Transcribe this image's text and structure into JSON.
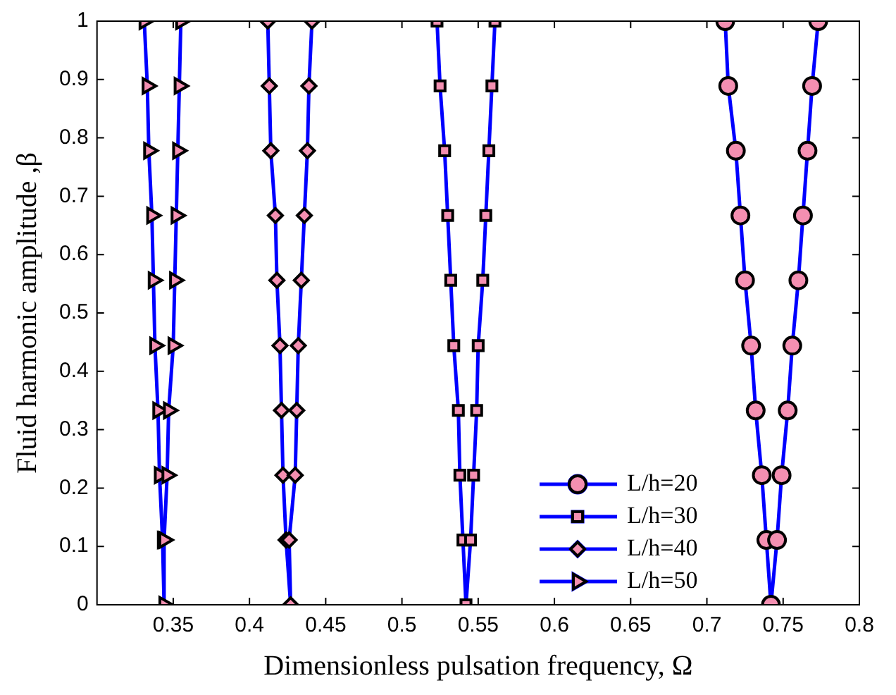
{
  "chart_data": {
    "type": "line",
    "xlabel": "Dimensionless pulsation frequency, Ω",
    "ylabel": "Fluid harmonic amplitude ,β",
    "xlim": [
      0.3,
      0.8
    ],
    "xticks": [
      0.35,
      0.4,
      0.45,
      0.5,
      0.55,
      0.6,
      0.65,
      0.7,
      0.75,
      0.8
    ],
    "ylim": [
      0,
      1
    ],
    "yticks": [
      0,
      0.1,
      0.2,
      0.3,
      0.4,
      0.5,
      0.6,
      0.7,
      0.8,
      0.9,
      1
    ],
    "grid": false,
    "legend": "bottom right",
    "line_style": "solid",
    "series": [
      {
        "name": "L/h=20",
        "color": "#0000ff",
        "marker": "circle",
        "x": [
          0.712,
          0.714,
          0.719,
          0.722,
          0.725,
          0.729,
          0.732,
          0.736,
          0.739,
          0.742,
          0.746,
          0.749,
          0.753,
          0.756,
          0.76,
          0.763,
          0.766,
          0.769,
          0.773
        ],
        "values": [
          1,
          0.889,
          0.778,
          0.667,
          0.556,
          0.444,
          0.333,
          0.222,
          0.111,
          0,
          0.111,
          0.222,
          0.333,
          0.444,
          0.556,
          0.667,
          0.778,
          0.889,
          1
        ]
      },
      {
        "name": "L/h=30",
        "color": "#0000ff",
        "marker": "square",
        "x": [
          0.523,
          0.525,
          0.528,
          0.53,
          0.532,
          0.534,
          0.537,
          0.538,
          0.54,
          0.542,
          0.545,
          0.547,
          0.549,
          0.55,
          0.553,
          0.555,
          0.557,
          0.559,
          0.561
        ],
        "values": [
          1,
          0.889,
          0.778,
          0.667,
          0.556,
          0.444,
          0.333,
          0.222,
          0.111,
          0,
          0.111,
          0.222,
          0.333,
          0.444,
          0.556,
          0.667,
          0.778,
          0.889,
          1
        ]
      },
      {
        "name": "L/h=40",
        "color": "#0000ff",
        "marker": "diamond",
        "x": [
          0.412,
          0.413,
          0.414,
          0.417,
          0.418,
          0.42,
          0.421,
          0.422,
          0.424,
          0.427,
          0.426,
          0.43,
          0.431,
          0.432,
          0.434,
          0.436,
          0.438,
          0.439,
          0.441
        ],
        "values": [
          1,
          0.889,
          0.778,
          0.667,
          0.556,
          0.444,
          0.333,
          0.222,
          0.111,
          0,
          0.111,
          0.222,
          0.333,
          0.444,
          0.556,
          0.667,
          0.778,
          0.889,
          1
        ]
      },
      {
        "name": "L/h=50",
        "color": "#0000ff",
        "marker": "triangle",
        "x": [
          0.331,
          0.333,
          0.334,
          0.336,
          0.337,
          0.338,
          0.34,
          0.341,
          0.343,
          0.344,
          0.344,
          0.346,
          0.347,
          0.35,
          0.351,
          0.352,
          0.353,
          0.354,
          0.355
        ],
        "values": [
          1,
          0.889,
          0.778,
          0.667,
          0.556,
          0.444,
          0.333,
          0.222,
          0.111,
          0,
          0.111,
          0.222,
          0.333,
          0.444,
          0.556,
          0.667,
          0.778,
          0.889,
          1
        ]
      }
    ]
  }
}
